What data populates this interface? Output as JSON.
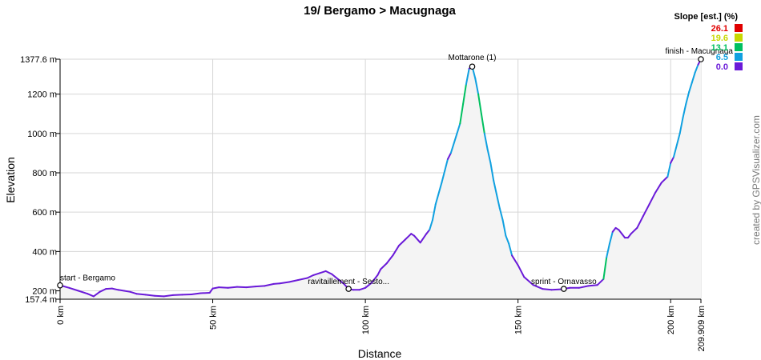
{
  "chart_data": {
    "type": "area",
    "title": "19/ Bergamo > Macugnaga",
    "xlabel": "Distance",
    "ylabel": "Elevation",
    "x_unit": "km",
    "y_unit": "m",
    "xlim": [
      0,
      209.909
    ],
    "ylim": [
      157.4,
      1377.6
    ],
    "x_ticks": [
      {
        "value": 0,
        "label": "0 km"
      },
      {
        "value": 50,
        "label": "50 km"
      },
      {
        "value": 100,
        "label": "100 km"
      },
      {
        "value": 150,
        "label": "150 km"
      },
      {
        "value": 200,
        "label": "200 km"
      },
      {
        "value": 209.909,
        "label": "209.909 km"
      }
    ],
    "y_ticks": [
      {
        "value": 157.4,
        "label": "157.4 m"
      },
      {
        "value": 200,
        "label": "200 m"
      },
      {
        "value": 400,
        "label": "400 m"
      },
      {
        "value": 600,
        "label": "600 m"
      },
      {
        "value": 800,
        "label": "800 m"
      },
      {
        "value": 1000,
        "label": "1000 m"
      },
      {
        "value": 1200,
        "label": "1200 m"
      },
      {
        "value": 1377.6,
        "label": "1377.6 m"
      }
    ],
    "grid": true,
    "series": [
      {
        "x": [
          0,
          3,
          6,
          9,
          11,
          13,
          15,
          17,
          19,
          21,
          23,
          25,
          28,
          31,
          34,
          37,
          40,
          43,
          46,
          49,
          50,
          52,
          55,
          58,
          61,
          64,
          67,
          70,
          72,
          75,
          78,
          81,
          83,
          85,
          87,
          89,
          91,
          93,
          94.5,
          96,
          98,
          100,
          102,
          104,
          105,
          107,
          109,
          111,
          113,
          115,
          116,
          118,
          120,
          121,
          122,
          123,
          125,
          126,
          127,
          128,
          130,
          131,
          132,
          133,
          134,
          135,
          136,
          137,
          138,
          139,
          140,
          141,
          142,
          143,
          144,
          145,
          146,
          147,
          148,
          150,
          152,
          155,
          158,
          161,
          164,
          167,
          170,
          173,
          176,
          178,
          179,
          180,
          181,
          182,
          183,
          184,
          185,
          186,
          187,
          189,
          191,
          193,
          195,
          197,
          199,
          200,
          201,
          203,
          204,
          205,
          206,
          207,
          208,
          209,
          209.909
        ],
        "y": [
          228,
          215,
          200,
          185,
          172,
          195,
          210,
          212,
          205,
          200,
          195,
          185,
          180,
          175,
          172,
          178,
          180,
          182,
          188,
          190,
          212,
          218,
          215,
          220,
          218,
          222,
          225,
          235,
          238,
          245,
          255,
          265,
          280,
          290,
          300,
          285,
          260,
          235,
          210,
          205,
          205,
          215,
          240,
          280,
          310,
          340,
          380,
          430,
          460,
          490,
          480,
          445,
          490,
          510,
          560,
          640,
          750,
          810,
          870,
          900,
          1000,
          1050,
          1150,
          1250,
          1330,
          1340,
          1280,
          1200,
          1100,
          1000,
          920,
          850,
          760,
          690,
          620,
          560,
          480,
          440,
          380,
          330,
          270,
          230,
          210,
          205,
          208,
          215,
          215,
          225,
          230,
          260,
          370,
          440,
          500,
          520,
          510,
          490,
          470,
          470,
          490,
          520,
          580,
          640,
          700,
          750,
          780,
          850,
          880,
          1000,
          1080,
          1150,
          1210,
          1260,
          1310,
          1350,
          1377.6
        ]
      }
    ],
    "waypoints": [
      {
        "km": 0,
        "elev": 228,
        "label": "start - Bergamo"
      },
      {
        "km": 94.5,
        "elev": 210,
        "label": "ravitaillement - Sesto..."
      },
      {
        "km": 135,
        "elev": 1340,
        "label": "Mottarone (1)"
      },
      {
        "km": 165,
        "elev": 210,
        "label": "sprint - Ornavasso"
      },
      {
        "km": 209.909,
        "elev": 1377.6,
        "label": "finish - Macugnaga"
      }
    ],
    "legend": {
      "title": "Slope [est.] (%)",
      "placement": "top-right",
      "items": [
        {
          "label": "26.1",
          "color": "#e00000"
        },
        {
          "label": "19.6",
          "color": "#c8d800"
        },
        {
          "label": "13.1",
          "color": "#00c060"
        },
        {
          "label": "6.5",
          "color": "#10a0e0"
        },
        {
          "label": "0.0",
          "color": "#6a1ad8"
        }
      ]
    }
  },
  "credit": "created by GPSVisualizer.com"
}
